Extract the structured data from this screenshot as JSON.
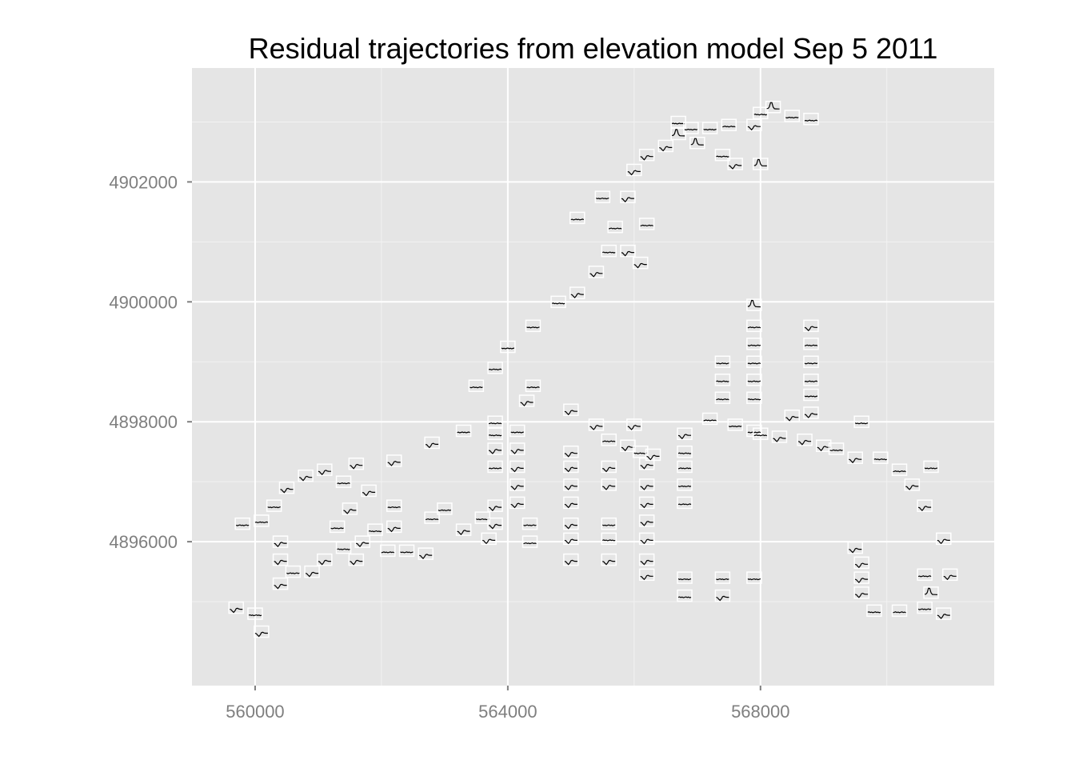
{
  "chart_data": {
    "type": "scatter",
    "subtype": "glyph-map",
    "title": "Residual trajectories from elevation model Sep 5 2011",
    "xlabel": "",
    "ylabel": "",
    "xlim": [
      559000,
      571700
    ],
    "ylim": [
      4893600,
      4903900
    ],
    "x_ticks": [
      560000,
      564000,
      568000
    ],
    "x_tick_labels": [
      "560000",
      "564000",
      "568000"
    ],
    "y_ticks": [
      4896000,
      4898000,
      4900000,
      4902000
    ],
    "y_tick_labels": [
      "4896000",
      "4898000",
      "4900000",
      "4902000"
    ],
    "grid": true,
    "legend": "none",
    "colors": {
      "panel": "#e5e5e5",
      "grid_major": "#ffffff",
      "grid_minor": "#f2f2f2",
      "box": "#ffffff",
      "trace": "#000000"
    },
    "points": [
      [
        559700,
        4894900,
        "dip"
      ],
      [
        560000,
        4894800,
        "flat"
      ],
      [
        560100,
        4894500,
        "dip"
      ],
      [
        559800,
        4896300,
        "flat"
      ],
      [
        560100,
        4896350,
        "flat"
      ],
      [
        560300,
        4896600,
        "flat"
      ],
      [
        560500,
        4896900,
        "dip"
      ],
      [
        560800,
        4897100,
        "dip"
      ],
      [
        561100,
        4897200,
        "dip"
      ],
      [
        561400,
        4897000,
        "flat"
      ],
      [
        561600,
        4897300,
        "dip"
      ],
      [
        561800,
        4896850,
        "dip"
      ],
      [
        562200,
        4897350,
        "dip"
      ],
      [
        562800,
        4897650,
        "dip"
      ],
      [
        563300,
        4897850,
        "flat"
      ],
      [
        560400,
        4896000,
        "dip"
      ],
      [
        560400,
        4895700,
        "dip"
      ],
      [
        560400,
        4895300,
        "dip"
      ],
      [
        560600,
        4895500,
        "flat"
      ],
      [
        560900,
        4895500,
        "dip"
      ],
      [
        561100,
        4895700,
        "dip"
      ],
      [
        561400,
        4895900,
        "flat"
      ],
      [
        561500,
        4896550,
        "dip"
      ],
      [
        561300,
        4896250,
        "flat"
      ],
      [
        561600,
        4895700,
        "dip"
      ],
      [
        561700,
        4896000,
        "dip"
      ],
      [
        561900,
        4896200,
        "flat"
      ],
      [
        562100,
        4895850,
        "flat"
      ],
      [
        562200,
        4896250,
        "dip"
      ],
      [
        562200,
        4896600,
        "flat"
      ],
      [
        562400,
        4895850,
        "flat"
      ],
      [
        562700,
        4895800,
        "dip"
      ],
      [
        562800,
        4896400,
        "flat"
      ],
      [
        563000,
        4896550,
        "flat"
      ],
      [
        563300,
        4896200,
        "dip"
      ],
      [
        563600,
        4896400,
        "flat"
      ],
      [
        563700,
        4896050,
        "dip"
      ],
      [
        563800,
        4896300,
        "dip"
      ],
      [
        563800,
        4896600,
        "dip"
      ],
      [
        563800,
        4897250,
        "flat"
      ],
      [
        563800,
        4897550,
        "dip"
      ],
      [
        563800,
        4897800,
        "flat"
      ],
      [
        563800,
        4898000,
        "flat"
      ],
      [
        563500,
        4898600,
        "flat"
      ],
      [
        563800,
        4898900,
        "flat"
      ],
      [
        564000,
        4899250,
        "flat"
      ],
      [
        564150,
        4896650,
        "dip"
      ],
      [
        564150,
        4896950,
        "dip"
      ],
      [
        564150,
        4897250,
        "dip"
      ],
      [
        564150,
        4897550,
        "dip"
      ],
      [
        564150,
        4897850,
        "flat"
      ],
      [
        564300,
        4898350,
        "dip"
      ],
      [
        564350,
        4896000,
        "flat"
      ],
      [
        564350,
        4896300,
        "flat"
      ],
      [
        564400,
        4898600,
        "flat"
      ],
      [
        564400,
        4899600,
        "flat"
      ],
      [
        564800,
        4900000,
        "flat"
      ],
      [
        565100,
        4900150,
        "dip"
      ],
      [
        565400,
        4900500,
        "dip"
      ],
      [
        565100,
        4901400,
        "flat"
      ],
      [
        565500,
        4901750,
        "flat"
      ],
      [
        565600,
        4900850,
        "flat"
      ],
      [
        565700,
        4901250,
        "flat"
      ],
      [
        565000,
        4898200,
        "dip"
      ],
      [
        565000,
        4897500,
        "dip"
      ],
      [
        565000,
        4897250,
        "dip"
      ],
      [
        565000,
        4896950,
        "dip"
      ],
      [
        565000,
        4896650,
        "dip"
      ],
      [
        565000,
        4896300,
        "dip"
      ],
      [
        565000,
        4896050,
        "dip"
      ],
      [
        565000,
        4895700,
        "dip"
      ],
      [
        565400,
        4897950,
        "dip"
      ],
      [
        565600,
        4897700,
        "flat"
      ],
      [
        565600,
        4897250,
        "dip"
      ],
      [
        565600,
        4896950,
        "dip"
      ],
      [
        565600,
        4896300,
        "flat"
      ],
      [
        565600,
        4896050,
        "flat"
      ],
      [
        565600,
        4895700,
        "dip"
      ],
      [
        565900,
        4900850,
        "dip"
      ],
      [
        565900,
        4901750,
        "dip"
      ],
      [
        566000,
        4902200,
        "dip"
      ],
      [
        566100,
        4900650,
        "dip"
      ],
      [
        566200,
        4901300,
        "flat"
      ],
      [
        565900,
        4897600,
        "dip"
      ],
      [
        566000,
        4897950,
        "dip"
      ],
      [
        566100,
        4897500,
        "flat"
      ],
      [
        566200,
        4897300,
        "dip"
      ],
      [
        566200,
        4896950,
        "dip"
      ],
      [
        566200,
        4896650,
        "dip"
      ],
      [
        566200,
        4896350,
        "dip"
      ],
      [
        566200,
        4896050,
        "dip"
      ],
      [
        566200,
        4895700,
        "dip"
      ],
      [
        566200,
        4895450,
        "dip"
      ],
      [
        566300,
        4897450,
        "dip"
      ],
      [
        566200,
        4902450,
        "dip"
      ],
      [
        566500,
        4902600,
        "dip"
      ],
      [
        566700,
        4903000,
        "flat"
      ],
      [
        566700,
        4902800,
        "spike"
      ],
      [
        566900,
        4902900,
        "flat"
      ],
      [
        567000,
        4902650,
        "spike"
      ],
      [
        567200,
        4902900,
        "flat"
      ],
      [
        567400,
        4902450,
        "flat"
      ],
      [
        567500,
        4902950,
        "flat"
      ],
      [
        567600,
        4902300,
        "dip"
      ],
      [
        567900,
        4902950,
        "dip"
      ],
      [
        568000,
        4902300,
        "spike"
      ],
      [
        568000,
        4903150,
        "flat"
      ],
      [
        568200,
        4903250,
        "spike"
      ],
      [
        568500,
        4903100,
        "flat"
      ],
      [
        568800,
        4903050,
        "flat"
      ],
      [
        566800,
        4897800,
        "dip"
      ],
      [
        566800,
        4897500,
        "flat"
      ],
      [
        566800,
        4897250,
        "flat"
      ],
      [
        566800,
        4896950,
        "flat"
      ],
      [
        566800,
        4896650,
        "flat"
      ],
      [
        566800,
        4895400,
        "flat"
      ],
      [
        566800,
        4895100,
        "flat"
      ],
      [
        567200,
        4898050,
        "flat"
      ],
      [
        567600,
        4897950,
        "flat"
      ],
      [
        567900,
        4897850,
        "flat"
      ],
      [
        567400,
        4899000,
        "flat"
      ],
      [
        567400,
        4898700,
        "flat"
      ],
      [
        567400,
        4898400,
        "flat"
      ],
      [
        567400,
        4895400,
        "flat"
      ],
      [
        567400,
        4895100,
        "dip"
      ],
      [
        567900,
        4895400,
        "flat"
      ],
      [
        567900,
        4899950,
        "spike"
      ],
      [
        567900,
        4899600,
        "flat"
      ],
      [
        567900,
        4899300,
        "flat"
      ],
      [
        567900,
        4899000,
        "flat"
      ],
      [
        567900,
        4898700,
        "flat"
      ],
      [
        567900,
        4898400,
        "flat"
      ],
      [
        568000,
        4897800,
        "flat"
      ],
      [
        568300,
        4897750,
        "dip"
      ],
      [
        568500,
        4898100,
        "dip"
      ],
      [
        568700,
        4897700,
        "dip"
      ],
      [
        568800,
        4899600,
        "dip"
      ],
      [
        568800,
        4899300,
        "flat"
      ],
      [
        568800,
        4899000,
        "flat"
      ],
      [
        568800,
        4898700,
        "flat"
      ],
      [
        568800,
        4898450,
        "flat"
      ],
      [
        568800,
        4898150,
        "dip"
      ],
      [
        569000,
        4897600,
        "dip"
      ],
      [
        569200,
        4897550,
        "flat"
      ],
      [
        569500,
        4897400,
        "dip"
      ],
      [
        569600,
        4898000,
        "flat"
      ],
      [
        569900,
        4897400,
        "flat"
      ],
      [
        570200,
        4897200,
        "flat"
      ],
      [
        570400,
        4896950,
        "dip"
      ],
      [
        570600,
        4896600,
        "dip"
      ],
      [
        570700,
        4897250,
        "flat"
      ],
      [
        570900,
        4896050,
        "dip"
      ],
      [
        569500,
        4895900,
        "dip"
      ],
      [
        569600,
        4895650,
        "dip"
      ],
      [
        569600,
        4895400,
        "dip"
      ],
      [
        569600,
        4895150,
        "dip"
      ],
      [
        569800,
        4894850,
        "flat"
      ],
      [
        570200,
        4894850,
        "flat"
      ],
      [
        570600,
        4894900,
        "flat"
      ],
      [
        570600,
        4895450,
        "flat"
      ],
      [
        570700,
        4895150,
        "spike"
      ],
      [
        570900,
        4894800,
        "dip"
      ],
      [
        571000,
        4895450,
        "dip"
      ]
    ]
  }
}
